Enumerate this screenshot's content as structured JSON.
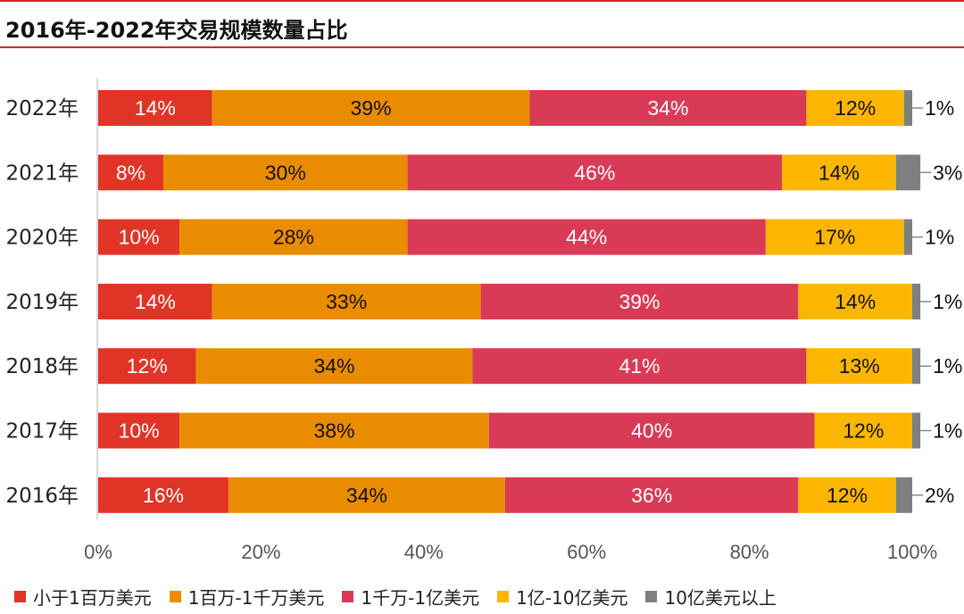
{
  "title": "2016年-2022年交易规模数量占比",
  "chart_data": {
    "type": "bar",
    "orientation": "horizontal",
    "stacked": true,
    "title": "2016年-2022年交易规模数量占比",
    "categories": [
      "2022年",
      "2021年",
      "2020年",
      "2019年",
      "2018年",
      "2017年",
      "2016年"
    ],
    "series": [
      {
        "name": "小于1百万美元",
        "color": "#e03427",
        "values": [
          14,
          8,
          10,
          14,
          12,
          10,
          16
        ]
      },
      {
        "name": "1百万-1千万美元",
        "color": "#ea8c00",
        "values": [
          39,
          30,
          28,
          33,
          34,
          38,
          34
        ]
      },
      {
        "name": "1千万-1亿美元",
        "color": "#d93a56",
        "values": [
          34,
          46,
          44,
          39,
          41,
          40,
          36
        ]
      },
      {
        "name": "1亿-10亿美元",
        "color": "#fdb600",
        "values": [
          12,
          14,
          17,
          14,
          13,
          12,
          12
        ]
      },
      {
        "name": "10亿美元以上",
        "color": "#7f7f7f",
        "values": [
          1,
          3,
          1,
          1,
          1,
          1,
          2
        ]
      }
    ],
    "xlim": [
      0,
      100
    ],
    "x_ticks": [
      "0%",
      "20%",
      "40%",
      "60%",
      "80%",
      "100%"
    ],
    "legend_position": "bottom",
    "grid": false
  }
}
